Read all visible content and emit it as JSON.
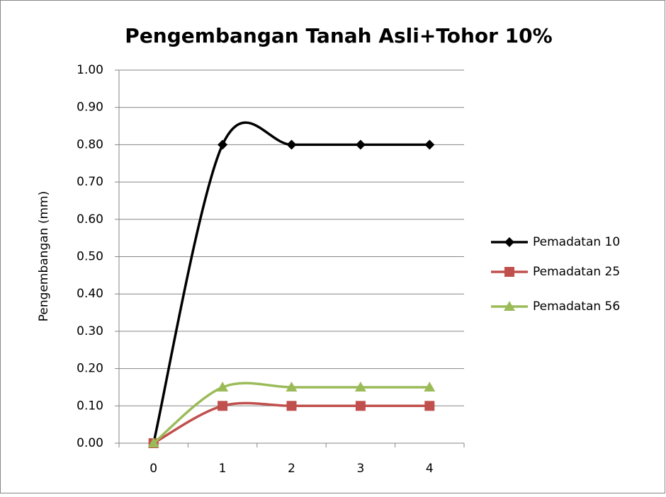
{
  "chart_data": {
    "type": "line",
    "title": "Pengembangan Tanah Asli+Tohor 10%",
    "ylabel": "Pengembangan (mm)",
    "categories": [
      "0",
      "1",
      "2",
      "3",
      "4"
    ],
    "series": [
      {
        "name": "Pemadatan 10",
        "color": "#000000",
        "marker": "diamond",
        "values": [
          0,
          0.8,
          0.8,
          0.8,
          0.8
        ]
      },
      {
        "name": "Pemadatan 25",
        "color": "#c0504d",
        "marker": "square",
        "values": [
          0,
          0.1,
          0.1,
          0.1,
          0.1
        ]
      },
      {
        "name": "Pemadatan 56",
        "color": "#9bbb59",
        "marker": "triangle",
        "values": [
          0,
          0.15,
          0.15,
          0.15,
          0.15
        ]
      }
    ],
    "ylim": [
      0,
      1
    ],
    "yticks": [
      {
        "value": 0,
        "label": "0.00"
      },
      {
        "value": 0.1,
        "label": "0.10"
      },
      {
        "value": 0.2,
        "label": "0.20"
      },
      {
        "value": 0.3,
        "label": "0.30"
      },
      {
        "value": 0.4,
        "label": "0.40"
      },
      {
        "value": 0.5,
        "label": "0.50"
      },
      {
        "value": 0.6,
        "label": "0.60"
      },
      {
        "value": 0.7,
        "label": "0.70"
      },
      {
        "value": 0.8,
        "label": "0.80"
      },
      {
        "value": 0.9,
        "label": "0.90"
      },
      {
        "value": 1,
        "label": "1.00"
      }
    ],
    "grid": true,
    "smooth": true,
    "legend": "right"
  }
}
